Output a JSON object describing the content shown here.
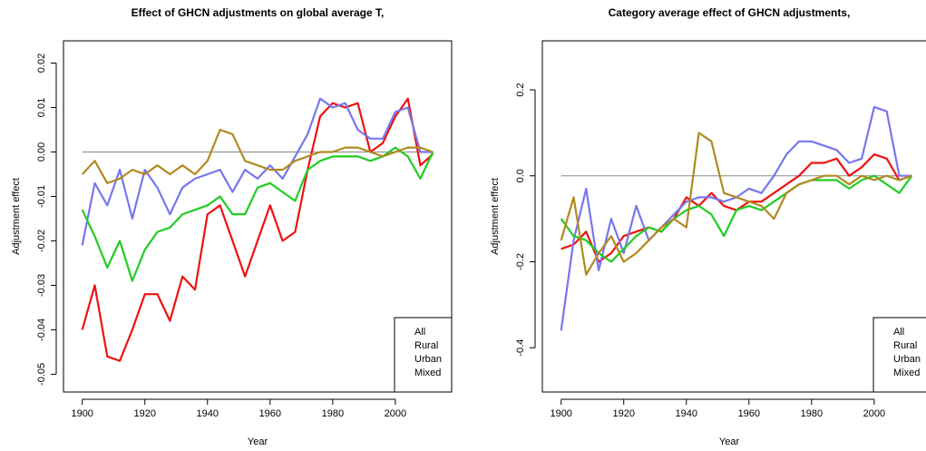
{
  "chart_data": [
    {
      "type": "line",
      "title": "Effect of GHCN adjustments on global average T,",
      "xlabel": "Year",
      "ylabel": "Adjustment effect",
      "x": [
        1900,
        1904,
        1908,
        1912,
        1916,
        1920,
        1924,
        1928,
        1932,
        1936,
        1940,
        1944,
        1948,
        1952,
        1956,
        1960,
        1964,
        1968,
        1972,
        1976,
        1980,
        1984,
        1988,
        1992,
        1996,
        2000,
        2004,
        2008,
        2012
      ],
      "series": [
        {
          "name": "All",
          "color": "#ee1111",
          "values": [
            -0.04,
            -0.03,
            -0.046,
            -0.047,
            -0.04,
            -0.032,
            -0.032,
            -0.038,
            -0.028,
            -0.031,
            -0.014,
            -0.012,
            -0.02,
            -0.028,
            -0.02,
            -0.012,
            -0.02,
            -0.018,
            -0.004,
            0.008,
            0.011,
            0.01,
            0.011,
            0.0,
            0.002,
            0.008,
            0.012,
            -0.003,
            -0.0005
          ]
        },
        {
          "name": "Rural",
          "color": "#7777ee",
          "values": [
            -0.021,
            -0.007,
            -0.012,
            -0.004,
            -0.015,
            -0.004,
            -0.008,
            -0.014,
            -0.008,
            -0.006,
            -0.005,
            -0.004,
            -0.009,
            -0.004,
            -0.006,
            -0.003,
            -0.006,
            -0.001,
            0.004,
            0.012,
            0.01,
            0.011,
            0.005,
            0.003,
            0.003,
            0.009,
            0.01,
            0.0,
            0.0
          ]
        },
        {
          "name": "Urban",
          "color": "#22cc22",
          "values": [
            -0.013,
            -0.019,
            -0.026,
            -0.02,
            -0.029,
            -0.022,
            -0.018,
            -0.017,
            -0.014,
            -0.013,
            -0.012,
            -0.01,
            -0.014,
            -0.014,
            -0.008,
            -0.007,
            -0.009,
            -0.011,
            -0.004,
            -0.002,
            -0.001,
            -0.001,
            -0.001,
            -0.002,
            -0.001,
            0.001,
            -0.001,
            -0.006,
            0.0
          ]
        },
        {
          "name": "Mixed",
          "color": "#b08a20",
          "values": [
            -0.005,
            -0.002,
            -0.007,
            -0.006,
            -0.004,
            -0.005,
            -0.003,
            -0.005,
            -0.003,
            -0.005,
            -0.002,
            0.005,
            0.004,
            -0.002,
            -0.003,
            -0.004,
            -0.004,
            -0.002,
            -0.001,
            0.0,
            0.0,
            0.001,
            0.001,
            0.0,
            -0.001,
            0.0,
            0.001,
            0.001,
            0.0
          ]
        }
      ],
      "xlim": [
        1894,
        2018
      ],
      "ylim": [
        -0.054,
        0.025
      ],
      "xticks": [
        1900,
        1920,
        1940,
        1960,
        1980,
        2000
      ],
      "yticks": [
        -0.05,
        -0.04,
        -0.03,
        -0.02,
        -0.01,
        {
          "value": 0,
          "label": "0.00"
        },
        0.01,
        0.02
      ],
      "hline": 0,
      "legend": "bottom-right"
    },
    {
      "type": "line",
      "title": "Category average effect of GHCN adjustments,",
      "xlabel": "Year",
      "ylabel": "Adjustment effect",
      "x": [
        1900,
        1904,
        1908,
        1912,
        1916,
        1920,
        1924,
        1928,
        1932,
        1936,
        1940,
        1944,
        1948,
        1952,
        1956,
        1960,
        1964,
        1968,
        1972,
        1976,
        1980,
        1984,
        1988,
        1992,
        1996,
        2000,
        2004,
        2008,
        2012
      ],
      "series": [
        {
          "name": "All",
          "color": "#ee1111",
          "values": [
            -0.17,
            -0.16,
            -0.13,
            -0.2,
            -0.18,
            -0.14,
            -0.13,
            -0.12,
            -0.13,
            -0.1,
            -0.05,
            -0.07,
            -0.04,
            -0.07,
            -0.08,
            -0.06,
            -0.06,
            -0.04,
            -0.02,
            0.0,
            0.03,
            0.03,
            0.04,
            0.0,
            0.02,
            0.05,
            0.04,
            -0.01,
            0.0
          ]
        },
        {
          "name": "Rural",
          "color": "#7777ee",
          "values": [
            -0.36,
            -0.15,
            -0.03,
            -0.22,
            -0.1,
            -0.18,
            -0.07,
            -0.15,
            -0.12,
            -0.09,
            -0.06,
            -0.05,
            -0.05,
            -0.06,
            -0.05,
            -0.03,
            -0.04,
            0.0,
            0.05,
            0.08,
            0.08,
            0.07,
            0.06,
            0.03,
            0.04,
            0.16,
            0.15,
            0.0,
            0.0
          ]
        },
        {
          "name": "Urban",
          "color": "#22cc22",
          "values": [
            -0.1,
            -0.14,
            -0.15,
            -0.18,
            -0.2,
            -0.17,
            -0.14,
            -0.12,
            -0.13,
            -0.1,
            -0.08,
            -0.07,
            -0.09,
            -0.14,
            -0.08,
            -0.07,
            -0.08,
            -0.06,
            -0.04,
            -0.02,
            -0.01,
            -0.01,
            -0.01,
            -0.03,
            -0.01,
            0.0,
            -0.02,
            -0.04,
            0.0
          ]
        },
        {
          "name": "Mixed",
          "color": "#b08a20",
          "values": [
            -0.15,
            -0.05,
            -0.23,
            -0.18,
            -0.14,
            -0.2,
            -0.18,
            -0.15,
            -0.12,
            -0.1,
            -0.12,
            0.1,
            0.08,
            -0.04,
            -0.05,
            -0.06,
            -0.07,
            -0.1,
            -0.04,
            -0.02,
            -0.01,
            0.0,
            0.0,
            -0.02,
            0.0,
            -0.01,
            0.0,
            -0.01,
            0.0
          ]
        }
      ],
      "xlim": [
        1894,
        2018
      ],
      "ylim": [
        -0.503,
        0.314
      ],
      "xticks": [
        1900,
        1920,
        1940,
        1960,
        1980,
        2000
      ],
      "yticks": [
        -0.4,
        -0.2,
        {
          "value": 0,
          "label": "0.0"
        },
        0.2
      ],
      "hline": 0,
      "legend": "bottom-right"
    }
  ]
}
